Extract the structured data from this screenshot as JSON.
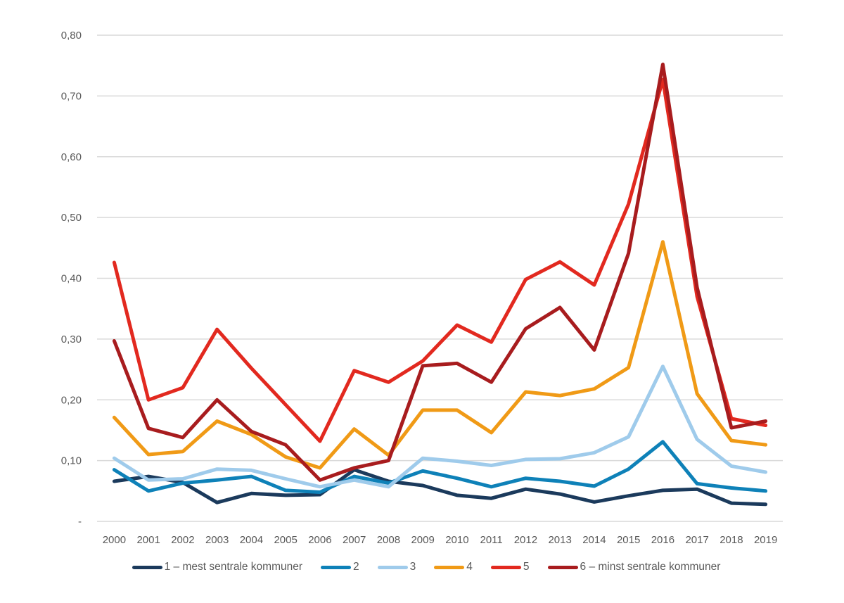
{
  "chart_data": {
    "type": "line",
    "title": "",
    "xlabel": "",
    "ylabel": "",
    "ylim": [
      0,
      0.8
    ],
    "yticks": [
      {
        "value": 0,
        "label": "-"
      },
      {
        "value": 0.1,
        "label": "0,10"
      },
      {
        "value": 0.2,
        "label": "0,20"
      },
      {
        "value": 0.3,
        "label": "0,30"
      },
      {
        "value": 0.4,
        "label": "0,40"
      },
      {
        "value": 0.5,
        "label": "0,50"
      },
      {
        "value": 0.6,
        "label": "0,60"
      },
      {
        "value": 0.7,
        "label": "0,70"
      },
      {
        "value": 0.8,
        "label": "0,80"
      }
    ],
    "grid": true,
    "legend_position": "bottom",
    "categories": [
      "2000",
      "2001",
      "2002",
      "2003",
      "2004",
      "2005",
      "2006",
      "2007",
      "2008",
      "2009",
      "2010",
      "2011",
      "2012",
      "2013",
      "2014",
      "2015",
      "2016",
      "2017",
      "2018",
      "2019"
    ],
    "series": [
      {
        "name": "1 – mest sentrale kommuner",
        "color": "#1b3a5c",
        "values": [
          0.066,
          0.074,
          0.064,
          0.031,
          0.046,
          0.043,
          0.044,
          0.085,
          0.066,
          0.059,
          0.043,
          0.038,
          0.053,
          0.045,
          0.032,
          0.042,
          0.051,
          0.053,
          0.03,
          0.028
        ]
      },
      {
        "name": "2",
        "color": "#0e81b8",
        "values": [
          0.085,
          0.05,
          0.063,
          0.068,
          0.074,
          0.051,
          0.048,
          0.074,
          0.063,
          0.083,
          0.071,
          0.057,
          0.071,
          0.066,
          0.058,
          0.086,
          0.131,
          0.062,
          0.055,
          0.05
        ]
      },
      {
        "name": "3",
        "color": "#9fcbeb",
        "values": [
          0.104,
          0.068,
          0.07,
          0.086,
          0.084,
          0.07,
          0.057,
          0.068,
          0.057,
          0.104,
          0.099,
          0.092,
          0.102,
          0.103,
          0.113,
          0.139,
          0.255,
          0.135,
          0.091,
          0.081
        ]
      },
      {
        "name": "4",
        "color": "#f09a16",
        "values": [
          0.171,
          0.11,
          0.115,
          0.165,
          0.143,
          0.106,
          0.088,
          0.152,
          0.109,
          0.183,
          0.183,
          0.146,
          0.213,
          0.207,
          0.218,
          0.253,
          0.46,
          0.21,
          0.133,
          0.126
        ]
      },
      {
        "name": "5",
        "color": "#e2291f",
        "values": [
          0.426,
          0.2,
          0.22,
          0.316,
          0.252,
          0.192,
          0.132,
          0.248,
          0.229,
          0.264,
          0.323,
          0.295,
          0.398,
          0.427,
          0.389,
          0.522,
          0.727,
          0.37,
          0.169,
          0.158
        ]
      },
      {
        "name": "6 – minst sentrale kommuner",
        "color": "#a81c1e",
        "values": [
          0.297,
          0.153,
          0.138,
          0.2,
          0.148,
          0.126,
          0.068,
          0.088,
          0.1,
          0.256,
          0.26,
          0.229,
          0.317,
          0.352,
          0.282,
          0.441,
          0.752,
          0.385,
          0.154,
          0.165
        ]
      }
    ]
  }
}
